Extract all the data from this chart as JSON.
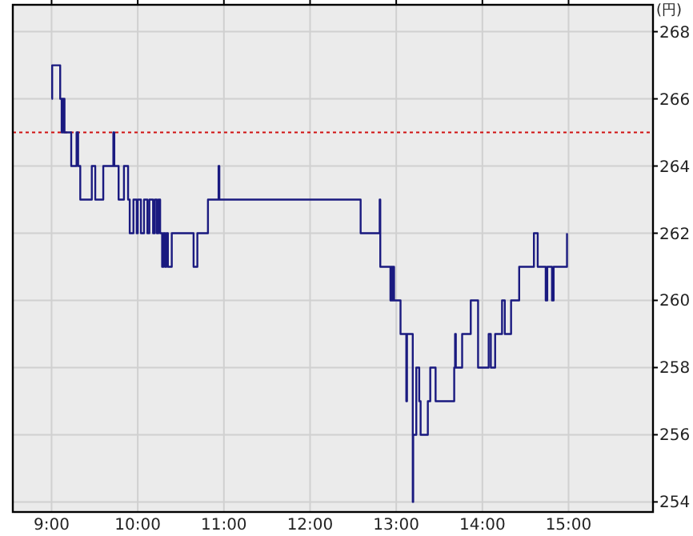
{
  "chart_data": {
    "type": "step",
    "ylabel": "(円)",
    "xlim": [
      8.55,
      15.98
    ],
    "ylim": [
      253.7,
      268.8
    ],
    "xticks": [
      {
        "value": 9,
        "label": "9:00"
      },
      {
        "value": 10,
        "label": "10:00"
      },
      {
        "value": 11,
        "label": "11:00"
      },
      {
        "value": 12,
        "label": "12:00"
      },
      {
        "value": 13,
        "label": "13:00"
      },
      {
        "value": 14,
        "label": "14:00"
      },
      {
        "value": 15,
        "label": "15:00"
      }
    ],
    "yticks": [
      254,
      256,
      258,
      260,
      262,
      264,
      266,
      268
    ],
    "grid": true,
    "ref_lines": [
      {
        "axis": "y",
        "value": 265,
        "color": "#d01010",
        "line_style": "dotted"
      }
    ],
    "series": [
      {
        "color": "#1a1a80",
        "x": [
          9.0,
          9.007,
          9.1,
          9.117,
          9.125,
          9.133,
          9.142,
          9.15,
          9.228,
          9.29,
          9.308,
          9.333,
          9.467,
          9.507,
          9.6,
          9.717,
          9.728,
          9.778,
          9.84,
          9.888,
          9.907,
          9.95,
          9.988,
          10.0,
          10.037,
          10.073,
          10.112,
          10.135,
          10.178,
          10.198,
          10.222,
          10.24,
          10.26,
          10.283,
          10.3,
          10.317,
          10.333,
          10.35,
          10.395,
          10.648,
          10.692,
          10.815,
          10.938,
          10.947,
          12.587,
          12.808,
          12.815,
          12.933,
          12.942,
          12.958,
          12.967,
          12.975,
          13.05,
          13.117,
          13.125,
          13.192,
          13.197,
          13.233,
          13.242,
          13.267,
          13.283,
          13.367,
          13.395,
          13.457,
          13.673,
          13.683,
          13.692,
          13.765,
          13.865,
          13.95,
          14.073,
          14.098,
          14.148,
          14.228,
          14.26,
          14.333,
          14.427,
          14.598,
          14.642,
          14.735,
          14.753,
          14.808,
          14.827,
          14.982
        ],
        "values": [
          266,
          267,
          266,
          265,
          266,
          265,
          266,
          265,
          264,
          265,
          264,
          263,
          264,
          263,
          264,
          265,
          264,
          263,
          264,
          263,
          262,
          263,
          262,
          263,
          262,
          263,
          262,
          263,
          262,
          263,
          262,
          263,
          262,
          261,
          262,
          261,
          262,
          261,
          262,
          261,
          262,
          263,
          264,
          263,
          262,
          263,
          261,
          260,
          261,
          260,
          261,
          260,
          259,
          257,
          259,
          254,
          256,
          258,
          258,
          257,
          256,
          257,
          258,
          257,
          258,
          259,
          258,
          259,
          260,
          258,
          259,
          258,
          259,
          260,
          259,
          260,
          261,
          262,
          261,
          260,
          261,
          260,
          261,
          262
        ]
      }
    ]
  }
}
